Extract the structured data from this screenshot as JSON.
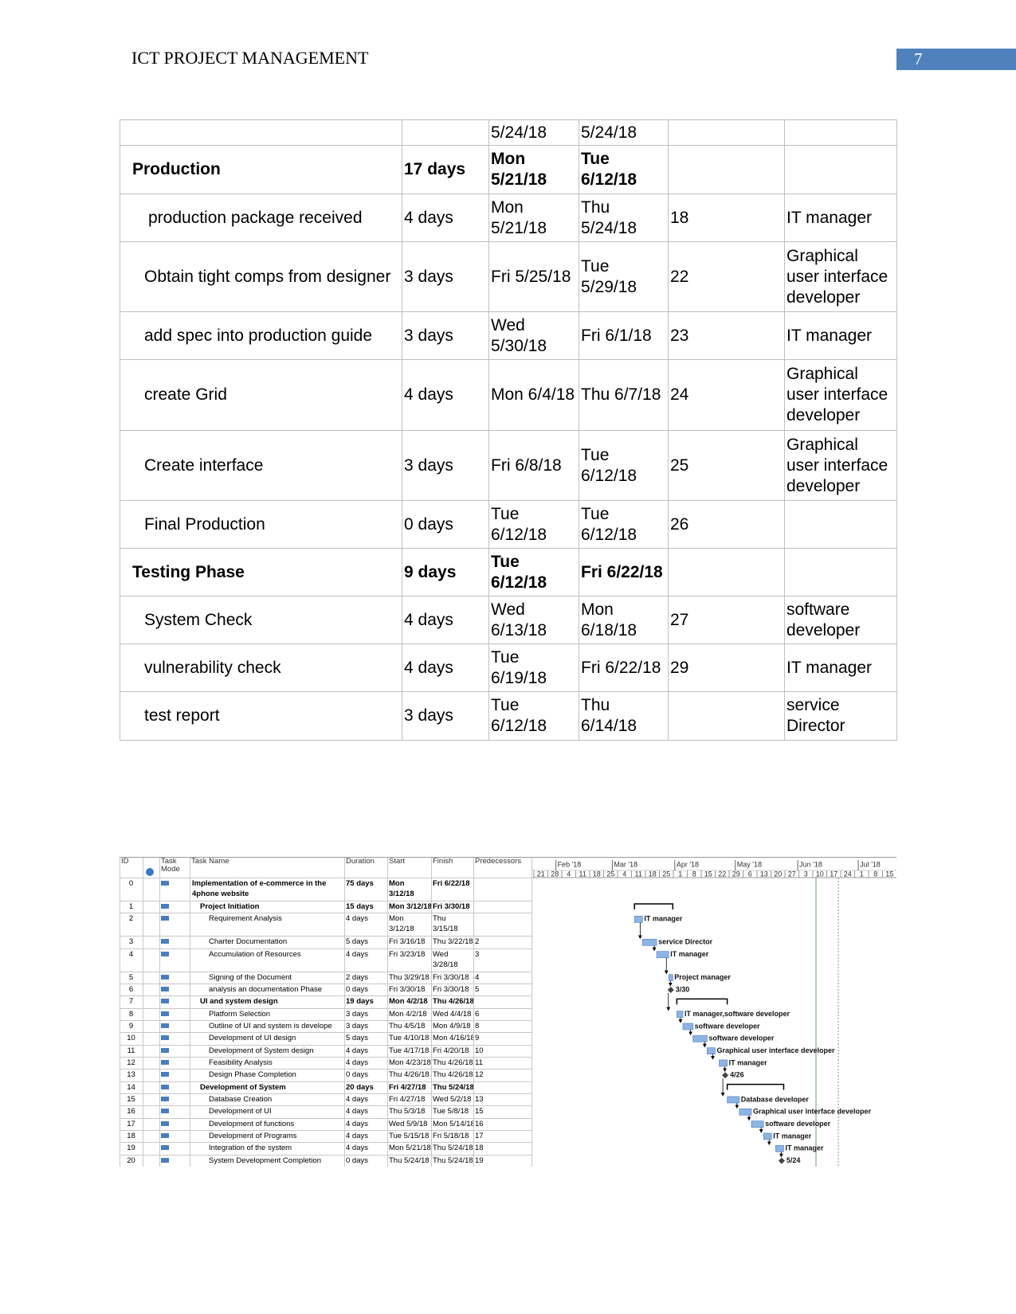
{
  "header": {
    "title": "ICT PROJECT MANAGEMENT",
    "page_number": "7"
  },
  "table": {
    "rows": [
      {
        "start": "5/24/18",
        "finish": "5/24/18"
      },
      {
        "task": "Production",
        "duration": "17 days",
        "start": "Mon 5/21/18",
        "finish": "Tue 6/12/18",
        "bold": true
      },
      {
        "task": "production package received",
        "duration": "4 days",
        "start": "Mon 5/21/18",
        "finish": "Thu 5/24/18",
        "predecessors": "18",
        "resource": "IT manager"
      },
      {
        "task": "Obtain tight comps from designer",
        "duration": "3 days",
        "start": "Fri 5/25/18",
        "finish": "Tue 5/29/18",
        "predecessors": "22",
        "resource": "Graphical user interface developer"
      },
      {
        "task": "add spec into production guide",
        "duration": "3 days",
        "start": "Wed 5/30/18",
        "finish": "Fri 6/1/18",
        "predecessors": "23",
        "resource": "IT manager"
      },
      {
        "task": "create Grid",
        "duration": "4 days",
        "start": "Mon 6/4/18",
        "finish": "Thu 6/7/18",
        "predecessors": "24",
        "resource": "Graphical user interface developer"
      },
      {
        "task": "Create interface",
        "duration": "3 days",
        "start": "Fri 6/8/18",
        "finish": "Tue 6/12/18",
        "predecessors": "25",
        "resource": "Graphical user interface developer"
      },
      {
        "task": "Final Production",
        "duration": "0 days",
        "start": "Tue 6/12/18",
        "finish": "Tue 6/12/18",
        "predecessors": "26"
      },
      {
        "task": "Testing Phase",
        "duration": "9 days",
        "start": "Tue 6/12/18",
        "finish": "Fri 6/22/18",
        "bold": true
      },
      {
        "task": "System Check",
        "duration": "4 days",
        "start": "Wed 6/13/18",
        "finish": "Mon 6/18/18",
        "predecessors": "27",
        "resource": "software developer"
      },
      {
        "task": "vulnerability check",
        "duration": "4 days",
        "start": "Tue 6/19/18",
        "finish": "Fri 6/22/18",
        "predecessors": "29",
        "resource": "IT manager"
      },
      {
        "task": "test report",
        "duration": "3 days",
        "start": "Tue 6/12/18",
        "finish": "Thu 6/14/18",
        "resource": "service Director"
      }
    ]
  },
  "gantt": {
    "columns": [
      "ID",
      "Task Mode",
      "Task Name",
      "Duration",
      "Start",
      "Finish",
      "Predecessors"
    ],
    "months": [
      "Feb '18",
      "Mar '18",
      "Apr '18",
      "May '18",
      "Jun '18",
      "Jul '18"
    ],
    "weeks": [
      "21",
      "28",
      "4",
      "11",
      "18",
      "25",
      "4",
      "11",
      "18",
      "25",
      "1",
      "8",
      "15",
      "22",
      "29",
      "6",
      "13",
      "20",
      "27",
      "3",
      "10",
      "17",
      "24",
      "1",
      "8",
      "15"
    ],
    "rows": [
      {
        "id": 0,
        "name": "Implementation of e-commerce in the 4phone website",
        "duration": "75 days",
        "start": "Mon 3/12/18",
        "finish": "Fri 6/22/18",
        "level": 0,
        "summary": true
      },
      {
        "id": 1,
        "name": "Project Initiation",
        "duration": "15 days",
        "start": "Mon 3/12/18",
        "finish": "Fri 3/30/18",
        "level": 1,
        "summary": true
      },
      {
        "id": 2,
        "name": "Requirement Analysis",
        "duration": "4 days",
        "start": "Mon 3/12/18",
        "finish": "Thu 3/15/18",
        "level": 2,
        "bar_label": "IT manager"
      },
      {
        "id": 3,
        "name": "Charter Documentation",
        "duration": "5 days",
        "start": "Fri 3/16/18",
        "finish": "Thu 3/22/18",
        "predecessors": "2",
        "level": 2,
        "bar_label": "service Director"
      },
      {
        "id": 4,
        "name": "Accumulation of Resources",
        "duration": "4 days",
        "start": "Fri 3/23/18",
        "finish": "Wed 3/28/18",
        "predecessors": "3",
        "level": 2,
        "bar_label": "IT manager"
      },
      {
        "id": 5,
        "name": "Signing of the Document",
        "duration": "2 days",
        "start": "Thu 3/29/18",
        "finish": "Fri 3/30/18",
        "predecessors": "4",
        "level": 2,
        "bar_label": "Project manager"
      },
      {
        "id": 6,
        "name": "analysis an documentation Phase",
        "duration": "0 days",
        "start": "Fri 3/30/18",
        "finish": "Fri 3/30/18",
        "predecessors": "5",
        "level": 2,
        "bar_label": "3/30"
      },
      {
        "id": 7,
        "name": "UI and system design",
        "duration": "19 days",
        "start": "Mon 4/2/18",
        "finish": "Thu 4/26/18",
        "level": 1,
        "summary": true
      },
      {
        "id": 8,
        "name": "Platform Selection",
        "duration": "3 days",
        "start": "Mon 4/2/18",
        "finish": "Wed 4/4/18",
        "predecessors": "6",
        "level": 2,
        "bar_label": "IT manager,software developer"
      },
      {
        "id": 9,
        "name": "Outline of UI and system is develope",
        "duration": "3 days",
        "start": "Thu 4/5/18",
        "finish": "Mon 4/9/18",
        "predecessors": "8",
        "level": 2,
        "bar_label": "software developer"
      },
      {
        "id": 10,
        "name": "Development of UI design",
        "duration": "5 days",
        "start": "Tue 4/10/18",
        "finish": "Mon 4/16/18",
        "predecessors": "9",
        "level": 2,
        "bar_label": "software developer"
      },
      {
        "id": 11,
        "name": "Development of System design",
        "duration": "4 days",
        "start": "Tue 4/17/18",
        "finish": "Fri 4/20/18",
        "predecessors": "10",
        "level": 2,
        "bar_label": "Graphical user interface developer"
      },
      {
        "id": 12,
        "name": "Feasibility Analysis",
        "duration": "4 days",
        "start": "Mon 4/23/18",
        "finish": "Thu 4/26/18",
        "predecessors": "11",
        "level": 2,
        "bar_label": "IT manager"
      },
      {
        "id": 13,
        "name": "Design Phase Completion",
        "duration": "0 days",
        "start": "Thu 4/26/18",
        "finish": "Thu 4/26/18",
        "predecessors": "12",
        "level": 2,
        "bar_label": "4/26"
      },
      {
        "id": 14,
        "name": "Development of System",
        "duration": "20 days",
        "start": "Fri 4/27/18",
        "finish": "Thu 5/24/18",
        "level": 1,
        "summary": true
      },
      {
        "id": 15,
        "name": "Database Creation",
        "duration": "4 days",
        "start": "Fri 4/27/18",
        "finish": "Wed 5/2/18",
        "predecessors": "13",
        "level": 2,
        "bar_label": "Database developer"
      },
      {
        "id": 16,
        "name": "Development of UI",
        "duration": "4 days",
        "start": "Thu 5/3/18",
        "finish": "Tue 5/8/18",
        "predecessors": "15",
        "level": 2,
        "bar_label": "Graphical user interface developer"
      },
      {
        "id": 17,
        "name": "Development of functions",
        "duration": "4 days",
        "start": "Wed 5/9/18",
        "finish": "Mon 5/14/18",
        "predecessors": "16",
        "level": 2,
        "bar_label": "software developer"
      },
      {
        "id": 18,
        "name": "Development of Programs",
        "duration": "4 days",
        "start": "Tue 5/15/18",
        "finish": "Fri 5/18/18",
        "predecessors": "17",
        "level": 2,
        "bar_label": "IT manager"
      },
      {
        "id": 19,
        "name": "Integration of the system",
        "duration": "4 days",
        "start": "Mon 5/21/18",
        "finish": "Thu 5/24/18",
        "predecessors": "18",
        "level": 2,
        "bar_label": "IT manager"
      },
      {
        "id": 20,
        "name": "System Development Completion",
        "duration": "0 days",
        "start": "Thu 5/24/18",
        "finish": "Thu 5/24/18",
        "predecessors": "19",
        "level": 2,
        "bar_label": "5/24"
      }
    ]
  }
}
